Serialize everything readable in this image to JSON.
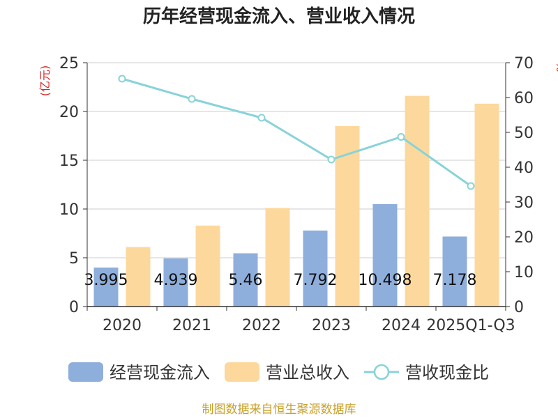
{
  "chart_data": {
    "type": "bar",
    "title": "历年经营现金流入、营业收入情况",
    "categories": [
      "2020",
      "2021",
      "2022",
      "2023",
      "2024",
      "2025Q1-Q3"
    ],
    "y_left": {
      "unit": "(亿元)",
      "ylim": [
        0,
        25
      ],
      "ticks": [
        "0",
        "5",
        "10",
        "15",
        "20",
        "25"
      ]
    },
    "y_right": {
      "unit": "%",
      "ylim": [
        0,
        70
      ],
      "ticks": [
        "0",
        "10",
        "20",
        "30",
        "40",
        "50",
        "60",
        "70"
      ]
    },
    "grid": true,
    "series": [
      {
        "name": "经营现金流入",
        "type": "bar",
        "axis": "left",
        "color": "#8eaedc",
        "values": [
          3.995,
          4.939,
          5.46,
          7.792,
          10.498,
          7.178
        ],
        "labels": [
          "3.995",
          "4.939",
          "5.46",
          "7.792",
          "10.498",
          "7.178"
        ]
      },
      {
        "name": "营业总收入",
        "type": "bar",
        "axis": "left",
        "color": "#fdd89c",
        "values": [
          6.1,
          8.3,
          10.1,
          18.5,
          21.6,
          20.8
        ]
      },
      {
        "name": "营收现金比",
        "type": "line",
        "axis": "right",
        "color": "#88d3d8",
        "values": [
          65.4,
          59.6,
          54.2,
          42.2,
          48.7,
          34.6
        ]
      }
    ],
    "legend_position": "bottom",
    "source": "制图数据来自恒生聚源数据库"
  }
}
